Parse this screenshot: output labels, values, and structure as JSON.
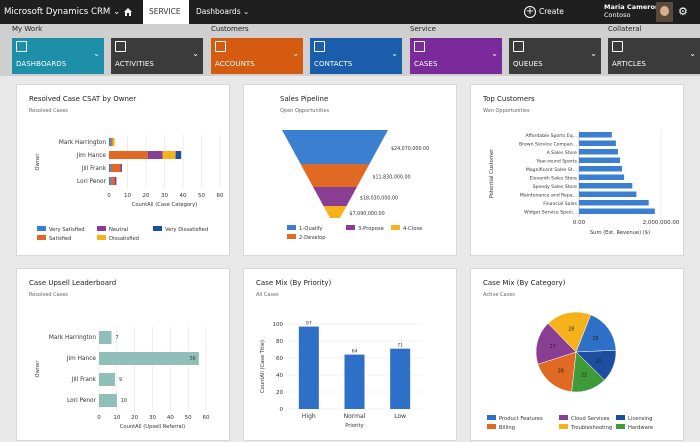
{
  "topbar": {
    "brand": "Microsoft Dynamics CRM",
    "brand_caret": "⌄",
    "home_icon": "home-icon",
    "area": "SERVICE",
    "area_caret": "⌄",
    "section": "Dashboards",
    "section_caret": "⌄",
    "create": "Create",
    "user_name": "Maria Cameron",
    "user_org": "Contoso",
    "gear_icon": "gear-icon"
  },
  "groups": {
    "my_work": "My Work",
    "customers": "Customers",
    "service": "Service",
    "collateral": "Collateral"
  },
  "tiles": [
    {
      "label": "DASHBOARDS",
      "icon": "dashboard-icon",
      "color": "#1d8fa8"
    },
    {
      "label": "ACTIVITIES",
      "icon": "activities-icon",
      "color": "#3b3b3b"
    },
    {
      "label": "ACCOUNTS",
      "icon": "accounts-icon",
      "color": "#d45b10"
    },
    {
      "label": "CONTACTS",
      "icon": "contacts-icon",
      "color": "#1a5eab"
    },
    {
      "label": "CASES",
      "icon": "cases-icon",
      "color": "#7a2a9a"
    },
    {
      "label": "QUEUES",
      "icon": "queues-icon",
      "color": "#3b3b3b"
    },
    {
      "label": "ARTICLES",
      "icon": "articles-icon",
      "color": "#3b3b3b"
    }
  ],
  "cards": {
    "csat": {
      "title": "Resolved Case CSAT by Owner",
      "sub": "Resolved Cases"
    },
    "pipeline": {
      "title": "Sales Pipeline",
      "sub": "Open Opportunities"
    },
    "topcust": {
      "title": "Top Customers",
      "sub": "Won Opportunities"
    },
    "upsell": {
      "title": "Case Upsell Leaderboard",
      "sub": "Resolved Cases"
    },
    "priority": {
      "title": "Case Mix (By Priority)",
      "sub": "All Cases"
    },
    "category": {
      "title": "Case Mix (By Category)",
      "sub": "Active Cases"
    }
  },
  "chart_data": [
    {
      "type": "bar",
      "orientation": "horizontal",
      "stacked": true,
      "title": "Resolved Case CSAT by Owner",
      "categories": [
        "Mark Harrington",
        "Jim Hance",
        "Jill Frank",
        "Lori Penor"
      ],
      "series": [
        {
          "name": "Very Satisfied",
          "color": "#3b7fd0",
          "values": [
            1,
            0,
            1,
            1
          ]
        },
        {
          "name": "Satisfied",
          "color": "#e06a23",
          "values": [
            1,
            21,
            5,
            2
          ]
        },
        {
          "name": "Neutral",
          "color": "#8a3e93",
          "values": [
            0,
            8,
            1,
            1
          ]
        },
        {
          "name": "Dissatisfied",
          "color": "#f6b21b",
          "values": [
            1,
            7,
            0,
            0
          ]
        },
        {
          "name": "Very Dissatisfied",
          "color": "#1e4ea0",
          "values": [
            0,
            3,
            0,
            0
          ]
        }
      ],
      "xlabel": "CountAll (Case Category)",
      "ylabel": "Owner",
      "xlim": [
        0,
        60
      ],
      "xticks": [
        0,
        10,
        20,
        30,
        40,
        50,
        60
      ]
    },
    {
      "type": "funnel",
      "title": "Sales Pipeline",
      "stages": [
        "1-Qualify",
        "2-Develop",
        "3-Propose",
        "4-Close"
      ],
      "colors": [
        "#3b7fd0",
        "#e06a23",
        "#8a3e93",
        "#f6b21b"
      ],
      "labels": [
        "$24,070,000.00",
        "$11,830,000.00",
        "$18,030,000.00",
        "$7,090,000.00"
      ],
      "values": [
        24070000,
        11830000,
        18030000,
        7090000
      ]
    },
    {
      "type": "bar",
      "orientation": "horizontal",
      "title": "Top Customers",
      "categories": [
        "Affordable Sports Eq...",
        "Brown Service Compan...",
        "A Sales Store",
        "Year-round Sports",
        "Magnificent Sales St...",
        "Eleventh Sales Store",
        "Speedy Sales Store",
        "Maintenance and Repa...",
        "Financial Sales",
        "Widget Service Speci..."
      ],
      "values": [
        800000,
        900000,
        950000,
        1000000,
        1050000,
        1100000,
        1300000,
        1400000,
        1700000,
        1850000
      ],
      "xlabel": "Sum (Est. Revenue) ($)",
      "ylabel": "Potential Customer",
      "xlim": [
        0,
        2000000
      ],
      "xtick_labels": [
        "0.00",
        "2,000,000.00"
      ]
    },
    {
      "type": "bar",
      "orientation": "horizontal",
      "title": "Case Upsell Leaderboard",
      "categories": [
        "Mark Harrington",
        "Jim Hance",
        "Jill Frank",
        "Lori Penor"
      ],
      "values": [
        7,
        56,
        9,
        10
      ],
      "color": "#8fbfb8",
      "xlabel": "CountAll (Upsell Referral)",
      "ylabel": "Owner",
      "xlim": [
        0,
        60
      ],
      "xticks": [
        0,
        10,
        20,
        30,
        40,
        50,
        60
      ]
    },
    {
      "type": "bar",
      "title": "Case Mix (By Priority)",
      "categories": [
        "High",
        "Normal",
        "Low"
      ],
      "values": [
        97,
        64,
        71
      ],
      "color": "#2e6fc8",
      "xlabel": "Priority",
      "ylabel": "CountAll (Case Title)",
      "ylim": [
        0,
        100
      ],
      "yticks": [
        0,
        20,
        40,
        60,
        80,
        100
      ]
    },
    {
      "type": "pie",
      "title": "Case Mix (By Category)",
      "categories": [
        "Product Features",
        "Cloud Services",
        "Licensing",
        "Billing",
        "Troubleshooting",
        "Hardware"
      ],
      "values": [
        28,
        27,
        20,
        28,
        28,
        22
      ],
      "colors": [
        "#2e6fc8",
        "#8a3e93",
        "#1e4ea0",
        "#e06a23",
        "#f6b21b",
        "#3f9a3a"
      ]
    }
  ]
}
